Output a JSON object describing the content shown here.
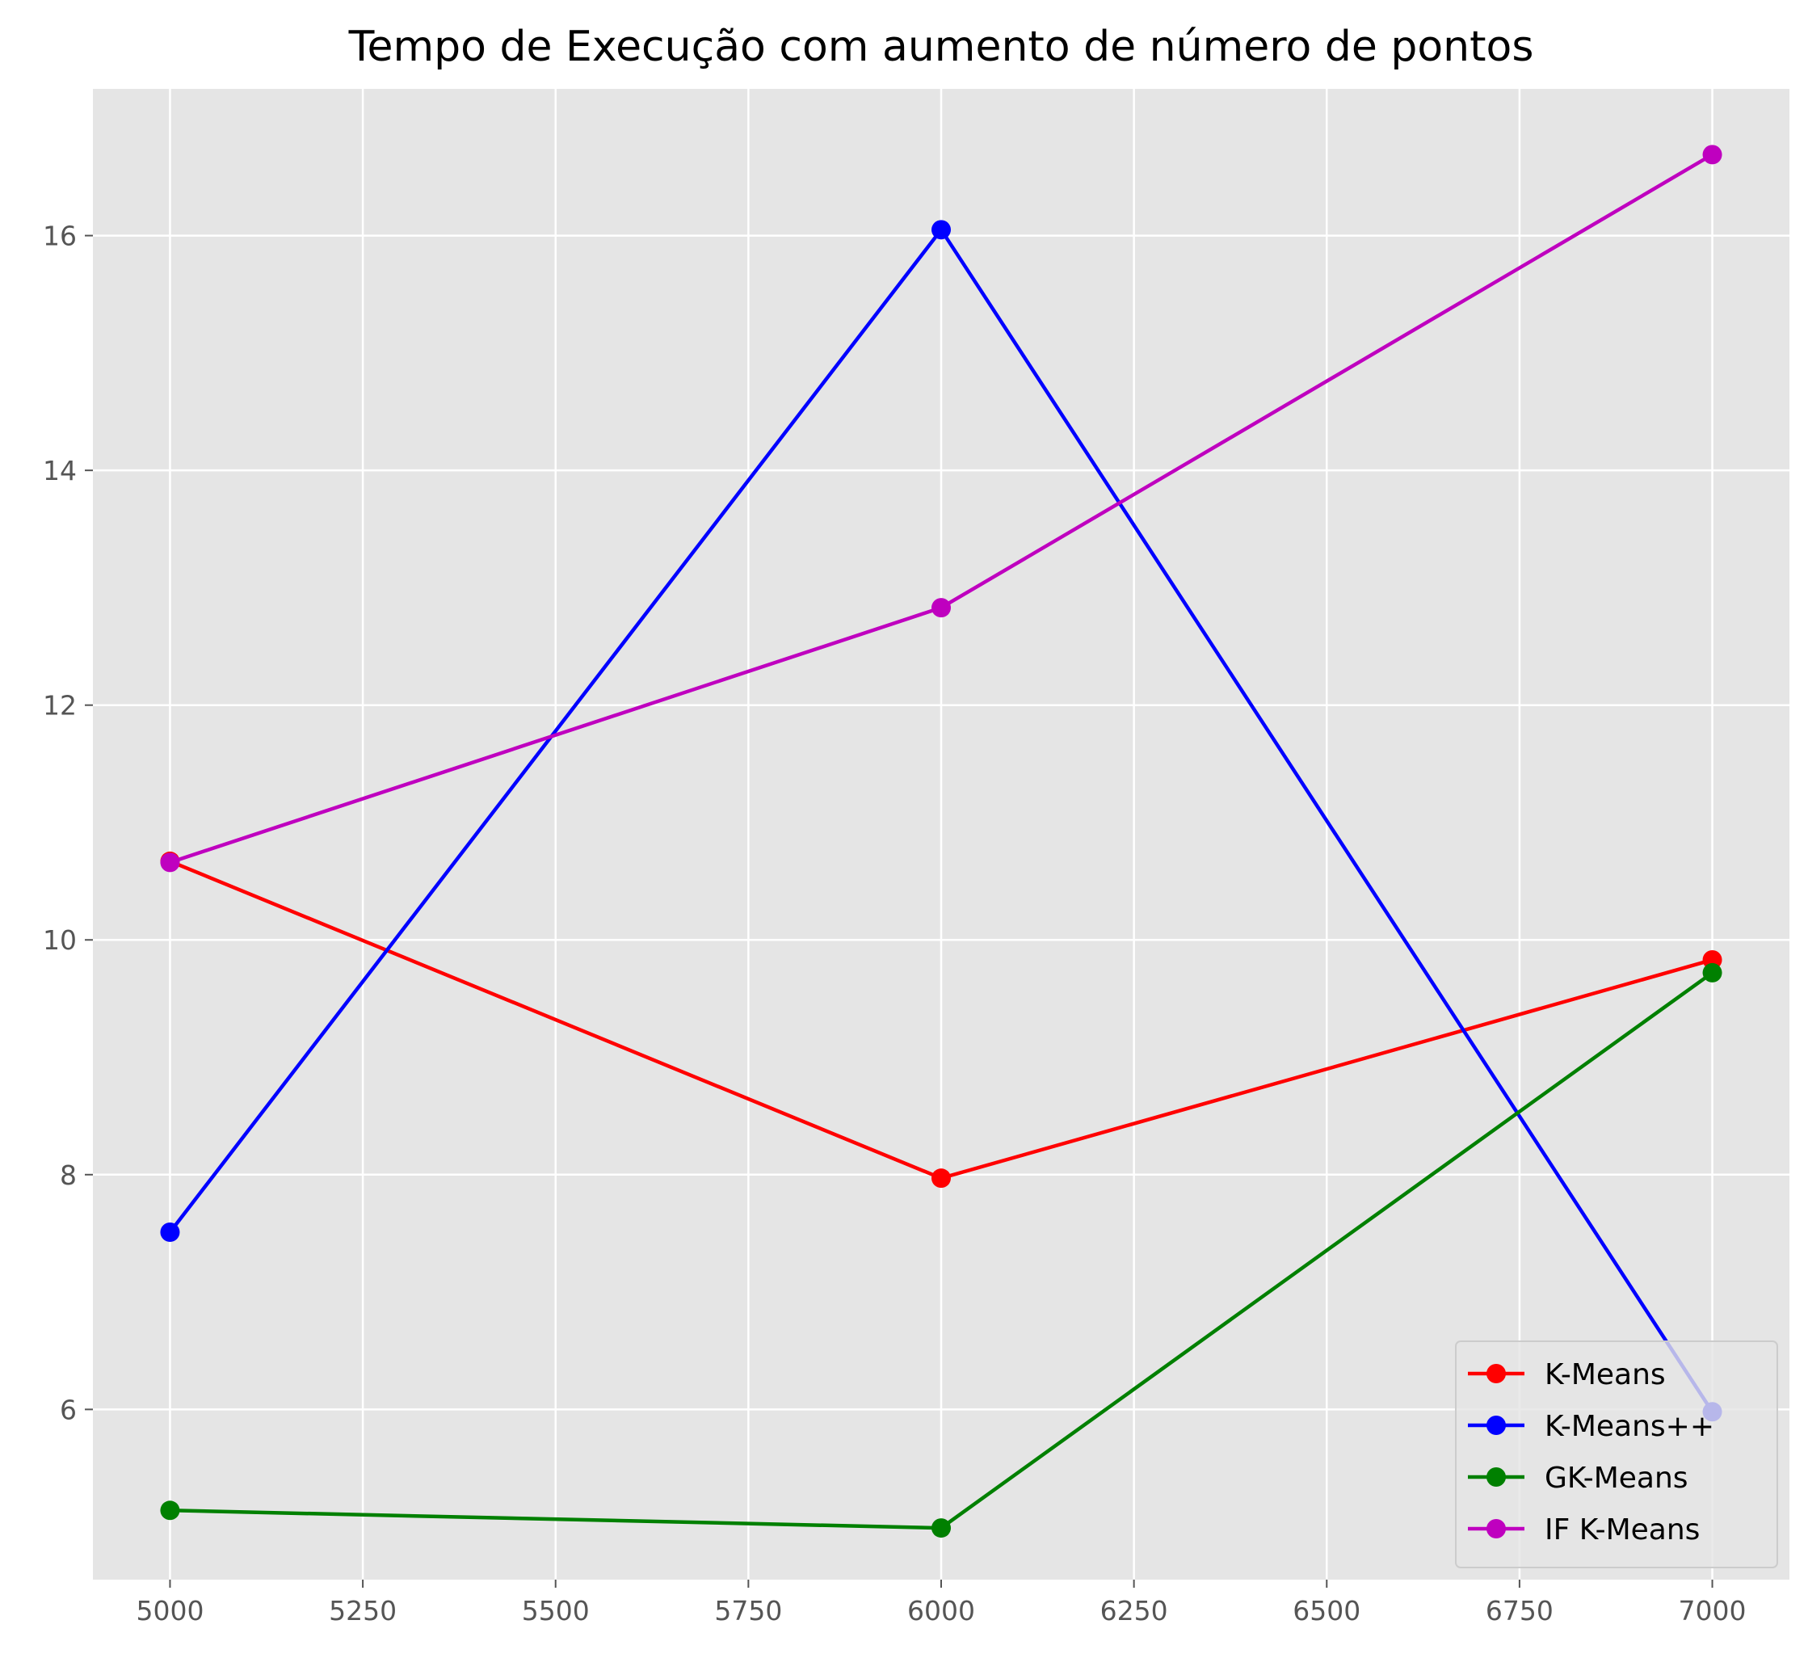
{
  "chart_data": {
    "type": "line",
    "title": "Tempo de Execução com aumento de número de pontos",
    "xlabel": "",
    "ylabel": "",
    "x": [
      5000,
      6000,
      7000
    ],
    "xlim": [
      4900,
      7100
    ],
    "ylim": [
      4.55,
      17.25
    ],
    "xticks": [
      5000,
      5250,
      5500,
      5750,
      6000,
      6250,
      6500,
      6750,
      7000
    ],
    "yticks": [
      6,
      8,
      10,
      12,
      14,
      16
    ],
    "grid": true,
    "legend_position": "lower right",
    "background": "#e5e5e5",
    "series": [
      {
        "name": "K-Means",
        "color": "#ff0000",
        "values": [
          10.67,
          7.97,
          9.83
        ]
      },
      {
        "name": "K-Means++",
        "color": "#0000ff",
        "values": [
          7.51,
          16.05,
          5.98
        ]
      },
      {
        "name": "GK-Means",
        "color": "#008000",
        "values": [
          5.14,
          4.99,
          9.72
        ]
      },
      {
        "name": "IF K-Means",
        "color": "#bf00bf",
        "values": [
          10.66,
          12.83,
          16.69
        ]
      }
    ]
  }
}
